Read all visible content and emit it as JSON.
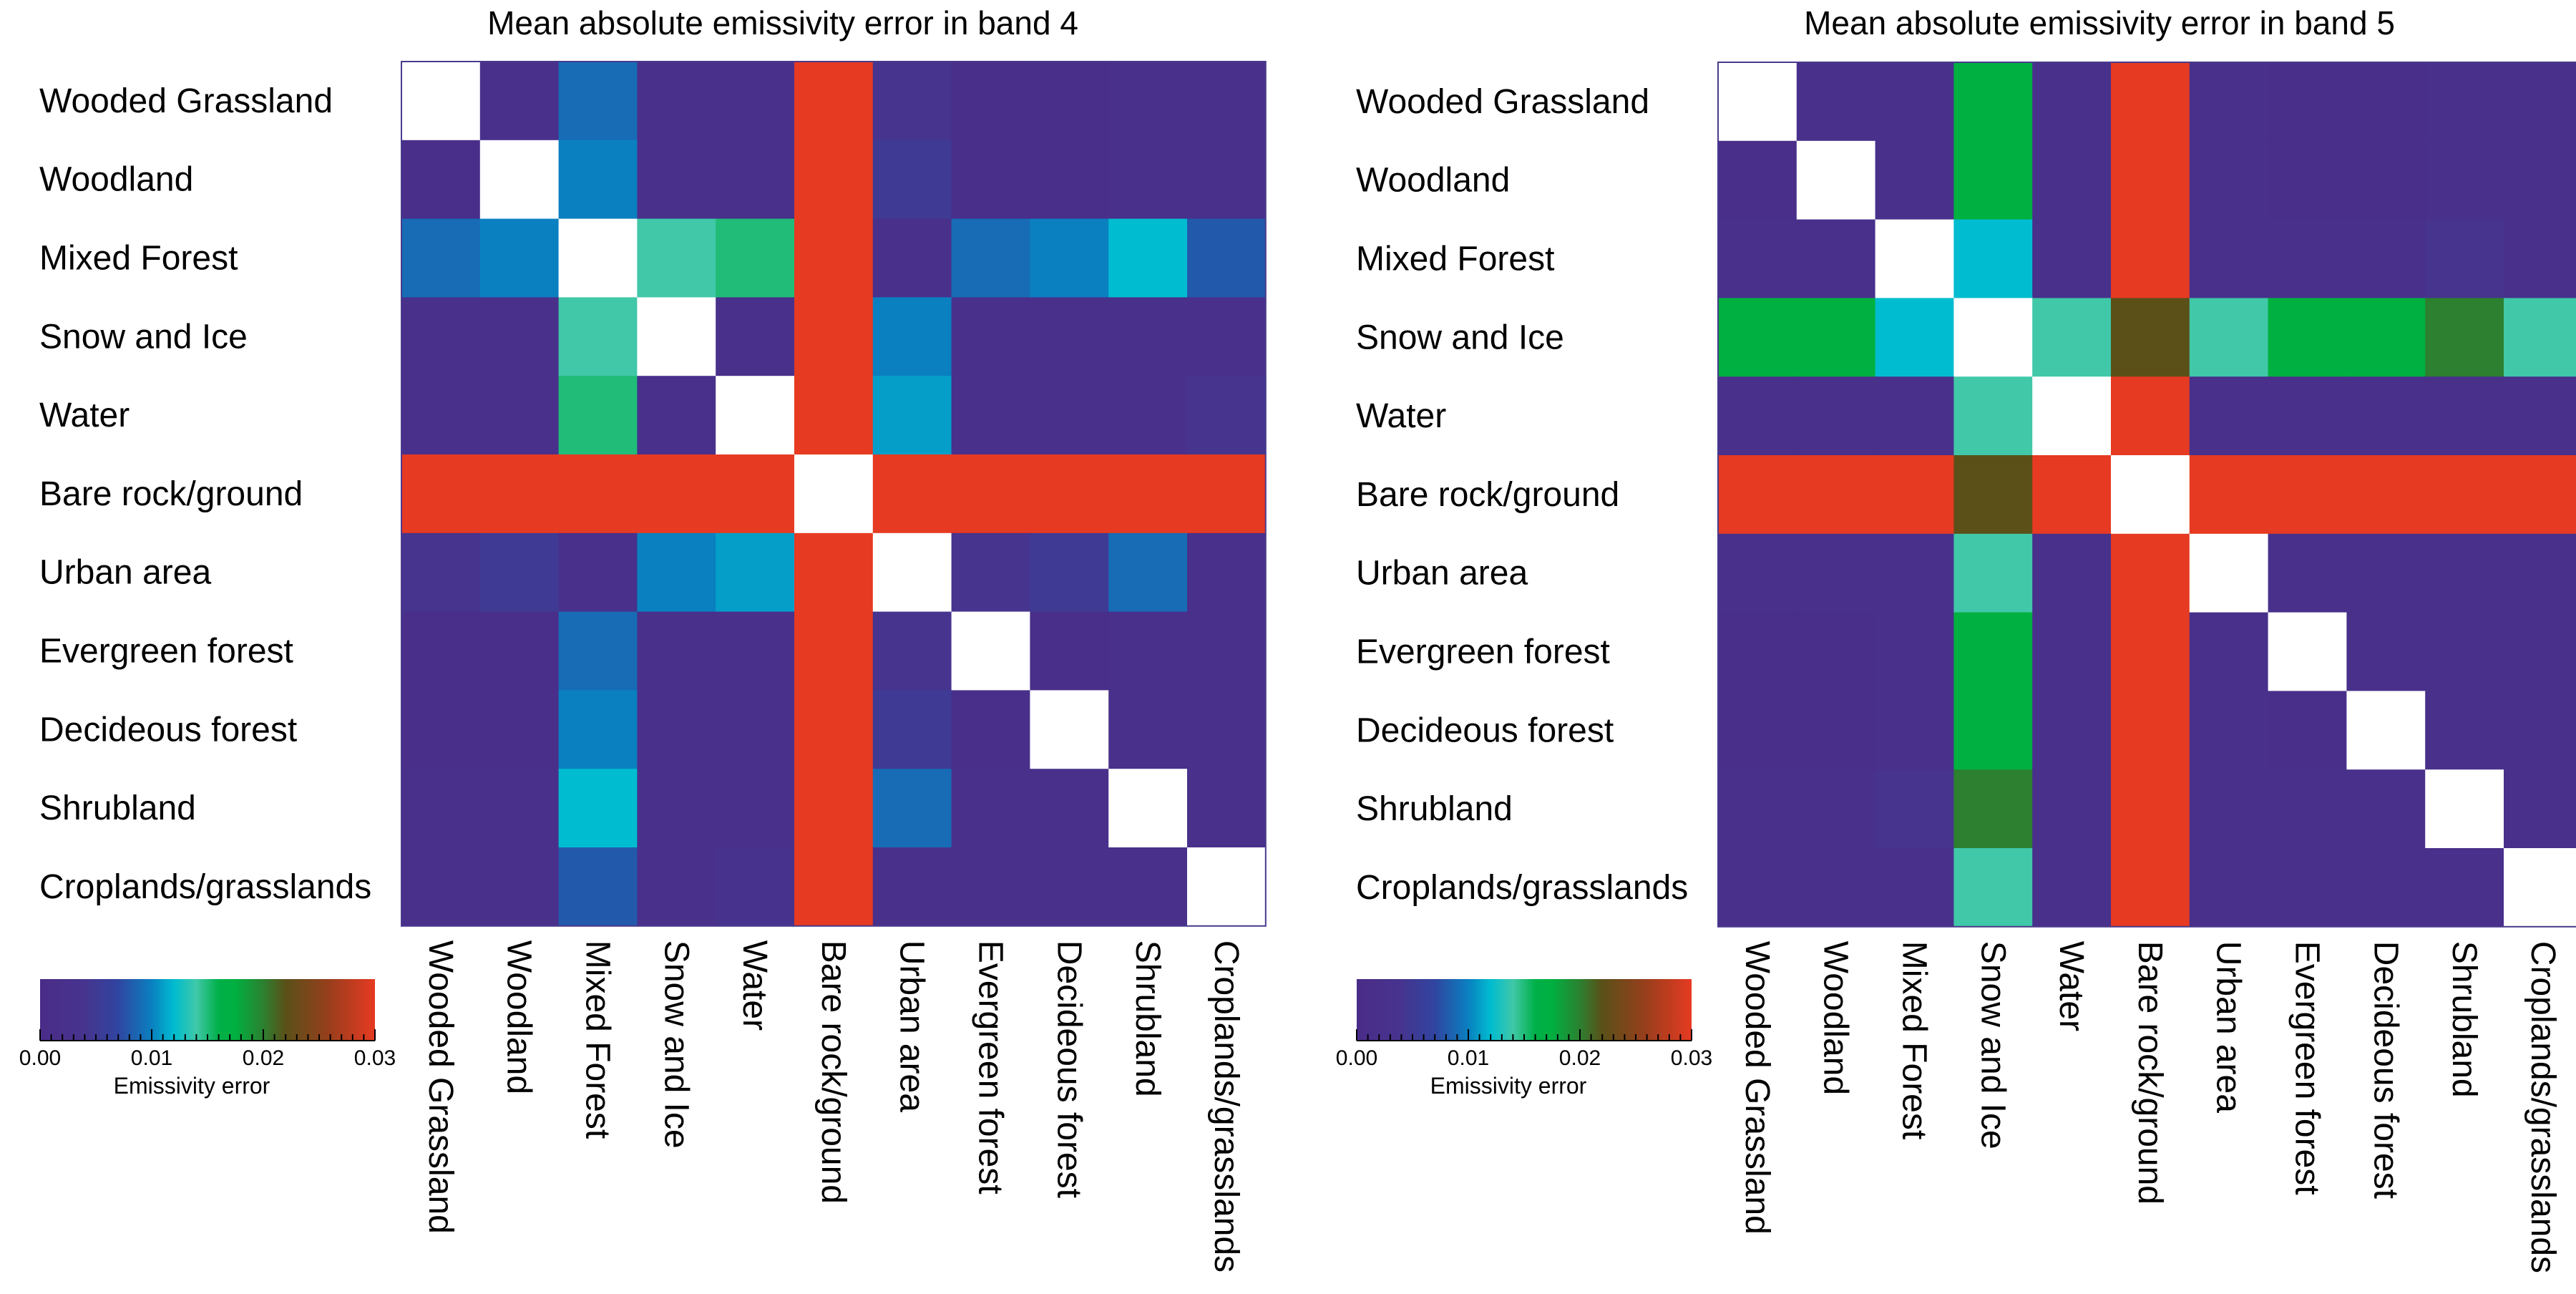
{
  "chart_data": [
    {
      "type": "heatmap",
      "title": "Mean absolute emissivity error in band 4",
      "rows": [
        "Wooded Grassland",
        "Woodland",
        "Mixed Forest",
        "Snow and Ice",
        "Water",
        "Bare rock/ground",
        "Urban area",
        "Evergreen forest",
        "Decideous forest",
        "Shrubland",
        "Croplands/grasslands"
      ],
      "columns": [
        "Wooded Grassland",
        "Woodland",
        "Mixed Forest",
        "Snow and Ice",
        "Water",
        "Bare rock/ground",
        "Urban area",
        "Evergreen forest",
        "Decideous forest",
        "Shrubland",
        "Croplands/grasslands"
      ],
      "values": [
        [
          null,
          0.002,
          0.009,
          0.002,
          0.002,
          0.03,
          0.004,
          0.001,
          0.0015,
          0.002,
          0.002
        ],
        [
          0.0015,
          null,
          0.01,
          0.002,
          0.002,
          0.03,
          0.005,
          0.0015,
          0.001,
          0.002,
          0.002
        ],
        [
          0.009,
          0.01,
          null,
          0.014,
          0.015,
          0.03,
          0.002,
          0.009,
          0.01,
          0.012,
          0.008
        ],
        [
          0.002,
          0.002,
          0.014,
          null,
          0.002,
          0.03,
          0.01,
          0.002,
          0.002,
          0.002,
          0.002
        ],
        [
          0.002,
          0.002,
          0.015,
          0.002,
          null,
          0.03,
          0.011,
          0.002,
          0.002,
          0.002,
          0.004
        ],
        [
          0.03,
          0.03,
          0.03,
          0.03,
          0.03,
          null,
          0.03,
          0.03,
          0.03,
          0.03,
          0.03
        ],
        [
          0.004,
          0.005,
          0.002,
          0.01,
          0.011,
          0.03,
          null,
          0.004,
          0.005,
          0.009,
          0.002
        ],
        [
          0.0012,
          0.0015,
          0.009,
          0.002,
          0.002,
          0.03,
          0.004,
          null,
          0.0015,
          0.002,
          0.002
        ],
        [
          0.0015,
          0.0012,
          0.01,
          0.002,
          0.002,
          0.03,
          0.005,
          0.0015,
          null,
          0.002,
          0.002
        ],
        [
          0.002,
          0.002,
          0.012,
          0.002,
          0.002,
          0.03,
          0.009,
          0.002,
          0.002,
          null,
          0.002
        ],
        [
          0.002,
          0.002,
          0.008,
          0.002,
          0.003,
          0.03,
          0.002,
          0.002,
          0.002,
          0.002,
          null
        ]
      ],
      "colorbar": {
        "label": "Emissivity error",
        "range": [
          0,
          0.03
        ],
        "ticks": [
          "0.00",
          "0.01",
          "0.02",
          "0.03"
        ]
      },
      "diagonal_color": "#ffffff"
    },
    {
      "type": "heatmap",
      "title": "Mean absolute emissivity error in band 5",
      "rows": [
        "Wooded Grassland",
        "Woodland",
        "Mixed Forest",
        "Snow and Ice",
        "Water",
        "Bare rock/ground",
        "Urban area",
        "Evergreen forest",
        "Decideous forest",
        "Shrubland",
        "Croplands/grasslands"
      ],
      "columns": [
        "Wooded Grassland",
        "Woodland",
        "Mixed Forest",
        "Snow and Ice",
        "Water",
        "Bare rock/ground",
        "Urban area",
        "Evergreen forest",
        "Decideous forest",
        "Shrubland",
        "Croplands/grasslands"
      ],
      "values": [
        [
          null,
          0.002,
          0.002,
          0.0175,
          0.002,
          0.03,
          0.002,
          0.0015,
          0.0015,
          0.002,
          0.002
        ],
        [
          0.0015,
          null,
          0.002,
          0.0175,
          0.002,
          0.03,
          0.002,
          0.0015,
          0.001,
          0.002,
          0.002
        ],
        [
          0.002,
          0.002,
          null,
          0.012,
          0.002,
          0.03,
          0.002,
          0.002,
          0.002,
          0.004,
          0.002
        ],
        [
          0.0175,
          0.0175,
          0.012,
          null,
          0.014,
          0.022,
          0.014,
          0.0175,
          0.0175,
          0.02,
          0.014
        ],
        [
          0.002,
          0.002,
          0.002,
          0.014,
          null,
          0.03,
          0.002,
          0.002,
          0.002,
          0.002,
          0.002
        ],
        [
          0.03,
          0.03,
          0.03,
          0.022,
          0.03,
          null,
          0.03,
          0.03,
          0.03,
          0.03,
          0.03
        ],
        [
          0.002,
          0.002,
          0.002,
          0.014,
          0.002,
          0.03,
          null,
          0.002,
          0.002,
          0.002,
          0.002
        ],
        [
          0.0012,
          0.0015,
          0.002,
          0.0175,
          0.002,
          0.03,
          0.002,
          null,
          0.002,
          0.002,
          0.002
        ],
        [
          0.0015,
          0.0012,
          0.002,
          0.0175,
          0.002,
          0.03,
          0.002,
          0.0015,
          null,
          0.002,
          0.002
        ],
        [
          0.002,
          0.002,
          0.004,
          0.02,
          0.002,
          0.03,
          0.002,
          0.002,
          0.002,
          null,
          0.002
        ],
        [
          0.002,
          0.002,
          0.002,
          0.014,
          0.002,
          0.03,
          0.002,
          0.002,
          0.002,
          0.002,
          null
        ]
      ],
      "colorbar": {
        "label": "Emissivity error",
        "range": [
          0,
          0.03
        ],
        "ticks": [
          "0.00",
          "0.01",
          "0.02",
          "0.03"
        ]
      },
      "diagonal_color": "#ffffff"
    }
  ],
  "colorscale": [
    {
      "v": 0.0,
      "color": "#4a2c88"
    },
    {
      "v": 0.004,
      "color": "#46348e"
    },
    {
      "v": 0.007,
      "color": "#3045a0"
    },
    {
      "v": 0.01,
      "color": "#0a80c0"
    },
    {
      "v": 0.012,
      "color": "#00bcd0"
    },
    {
      "v": 0.014,
      "color": "#40c8a8"
    },
    {
      "v": 0.016,
      "color": "#00b048"
    },
    {
      "v": 0.0175,
      "color": "#00b040"
    },
    {
      "v": 0.02,
      "color": "#2c8030"
    },
    {
      "v": 0.022,
      "color": "#5a5018"
    },
    {
      "v": 0.026,
      "color": "#9a3e1c"
    },
    {
      "v": 0.03,
      "color": "#e63a22"
    }
  ]
}
